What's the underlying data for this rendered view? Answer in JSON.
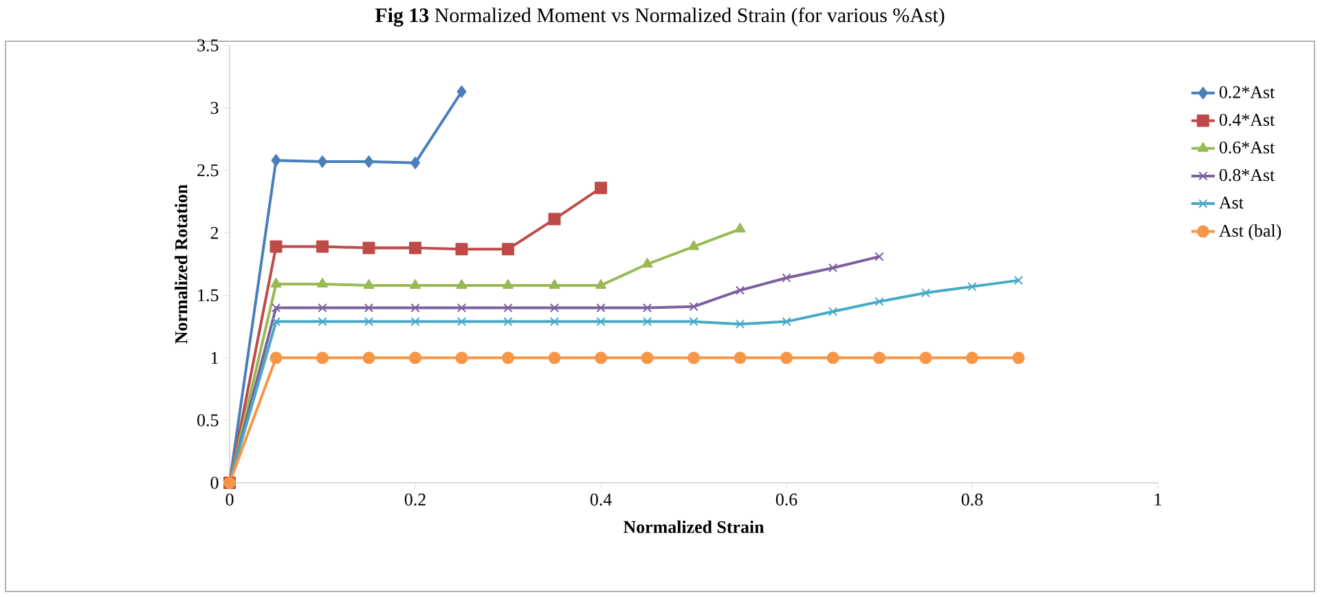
{
  "chart_data": {
    "type": "line",
    "title": "**Fig 13** Normalized Moment vs Normalized Strain (for various %Ast)",
    "xlabel": "Normalized Strain",
    "ylabel": "Normalized Rotation",
    "xlim": [
      0,
      1
    ],
    "ylim": [
      0,
      3.5
    ],
    "xticks": [
      0,
      0.2,
      0.4,
      0.6,
      0.8,
      1
    ],
    "yticks": [
      0,
      0.5,
      1,
      1.5,
      2,
      2.5,
      3,
      3.5
    ],
    "legend": "right",
    "series": [
      {
        "name": "0.2*Ast",
        "color": "#4a7ebb",
        "marker": "diamond",
        "x": [
          0,
          0.05,
          0.1,
          0.15,
          0.2,
          0.25
        ],
        "values": [
          0,
          2.58,
          2.57,
          2.57,
          2.56,
          3.13
        ]
      },
      {
        "name": "0.4*Ast",
        "color": "#be4b48",
        "marker": "square",
        "x": [
          0,
          0.05,
          0.1,
          0.15,
          0.2,
          0.25,
          0.3,
          0.35,
          0.4
        ],
        "values": [
          0,
          1.89,
          1.89,
          1.88,
          1.88,
          1.87,
          1.87,
          2.11,
          2.36
        ]
      },
      {
        "name": "0.6*Ast",
        "color": "#98b954",
        "marker": "triangle",
        "x": [
          0,
          0.05,
          0.1,
          0.15,
          0.2,
          0.25,
          0.3,
          0.35,
          0.4,
          0.45,
          0.5,
          0.55
        ],
        "values": [
          0,
          1.59,
          1.59,
          1.58,
          1.58,
          1.58,
          1.58,
          1.58,
          1.58,
          1.75,
          1.89,
          2.03
        ]
      },
      {
        "name": "0.8*Ast",
        "color": "#7d60a0",
        "marker": "cross",
        "x": [
          0,
          0.05,
          0.1,
          0.15,
          0.2,
          0.25,
          0.3,
          0.35,
          0.4,
          0.45,
          0.5,
          0.55,
          0.6,
          0.65,
          0.7
        ],
        "values": [
          0,
          1.4,
          1.4,
          1.4,
          1.4,
          1.4,
          1.4,
          1.4,
          1.4,
          1.4,
          1.41,
          1.54,
          1.64,
          1.72,
          1.81
        ]
      },
      {
        "name": "Ast",
        "color": "#46aac5",
        "marker": "cross",
        "x": [
          0,
          0.05,
          0.1,
          0.15,
          0.2,
          0.25,
          0.3,
          0.35,
          0.4,
          0.45,
          0.5,
          0.55,
          0.6,
          0.65,
          0.7,
          0.75,
          0.8,
          0.85
        ],
        "values": [
          0,
          1.29,
          1.29,
          1.29,
          1.29,
          1.29,
          1.29,
          1.29,
          1.29,
          1.29,
          1.29,
          1.27,
          1.29,
          1.37,
          1.45,
          1.52,
          1.57,
          1.62
        ]
      },
      {
        "name": "Ast (bal)",
        "color": "#f79646",
        "marker": "circle",
        "x": [
          0,
          0.05,
          0.1,
          0.15,
          0.2,
          0.25,
          0.3,
          0.35,
          0.4,
          0.45,
          0.5,
          0.55,
          0.6,
          0.65,
          0.7,
          0.75,
          0.8,
          0.85
        ],
        "values": [
          0,
          1,
          1,
          1,
          1,
          1,
          1,
          1,
          1,
          1,
          1,
          1,
          1,
          1,
          1,
          1,
          1,
          1
        ]
      }
    ]
  }
}
